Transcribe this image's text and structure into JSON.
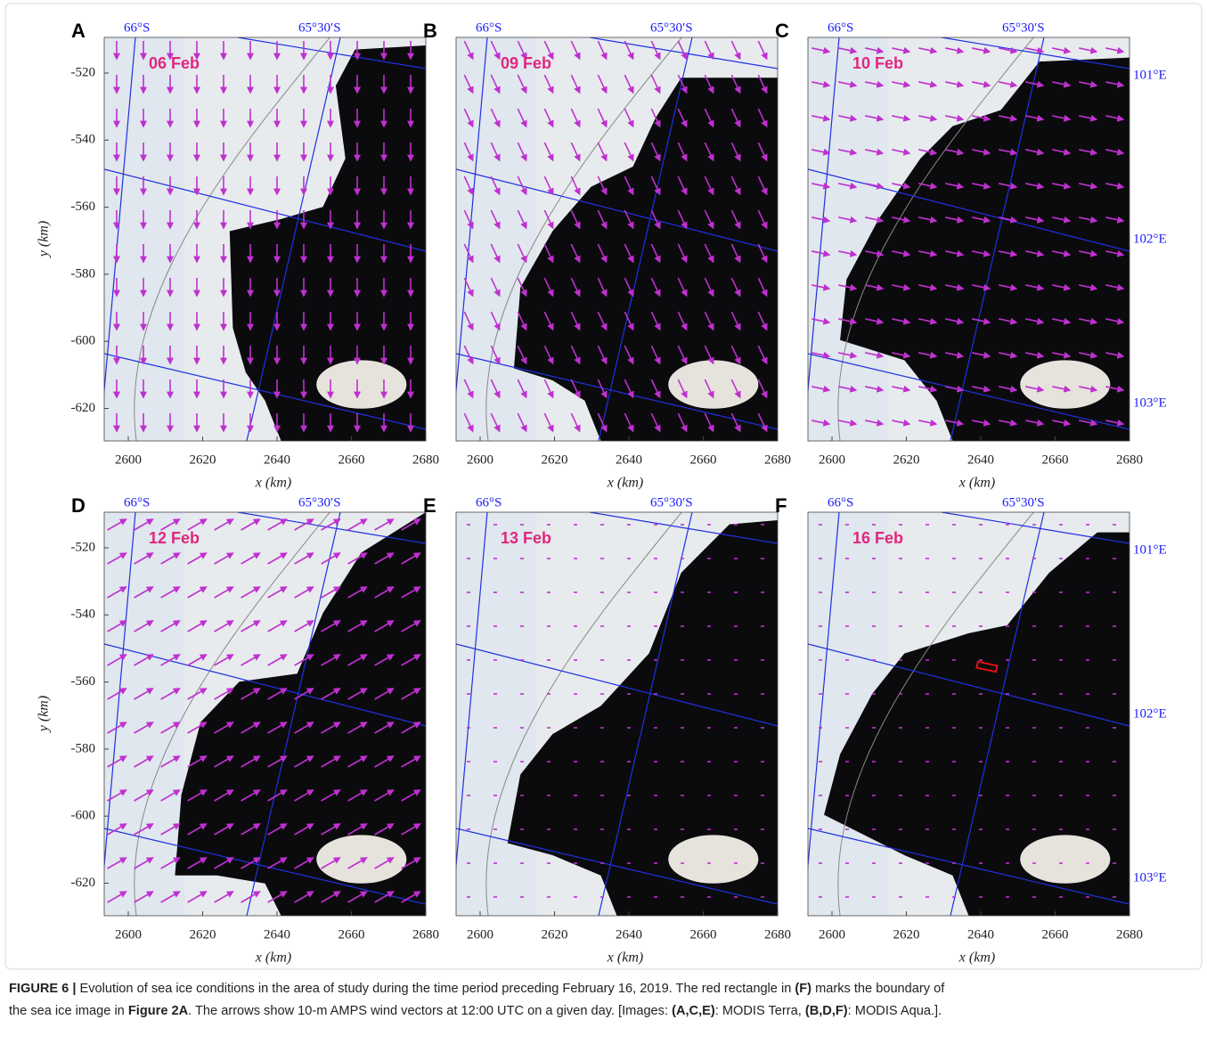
{
  "figure": {
    "panels": [
      {
        "letter": "A",
        "date": "06 Feb",
        "lat_labels": [
          "66°S",
          "65°30′S"
        ],
        "y_label": "y (km)",
        "y_ticks": [
          -520,
          -540,
          -560,
          -580,
          -600,
          -620
        ],
        "x_ticks": [
          2600,
          2620,
          2640,
          2660,
          2680
        ],
        "x_label": "x (km)"
      },
      {
        "letter": "B",
        "date": "09 Feb",
        "lat_labels": [
          "66°S",
          "65°30′S"
        ],
        "x_ticks": [
          2600,
          2620,
          2640,
          2660,
          2680
        ],
        "x_label": "x (km)"
      },
      {
        "letter": "C",
        "date": "10 Feb",
        "lat_labels": [
          "66°S",
          "65°30′S"
        ],
        "lon_labels": [
          "101°E",
          "102°E",
          "103°E"
        ],
        "x_ticks": [
          2600,
          2620,
          2640,
          2660,
          2680
        ],
        "x_label": "x (km)"
      },
      {
        "letter": "D",
        "date": "12 Feb",
        "lat_labels": [
          "66°S",
          "65°30′S"
        ],
        "y_label": "y (km)",
        "y_ticks": [
          -520,
          -540,
          -560,
          -580,
          -600,
          -620
        ],
        "x_ticks": [
          2600,
          2620,
          2640,
          2660,
          2680
        ],
        "x_label": "x (km)"
      },
      {
        "letter": "E",
        "date": "13 Feb",
        "lat_labels": [
          "66°S",
          "65°30′S"
        ],
        "x_ticks": [
          2600,
          2620,
          2640,
          2660,
          2680
        ],
        "x_label": "x (km)"
      },
      {
        "letter": "F",
        "date": "16 Feb",
        "lat_labels": [
          "66°S",
          "65°30′S"
        ],
        "lon_labels": [
          "101°E",
          "102°E",
          "103°E"
        ],
        "x_ticks": [
          2600,
          2620,
          2640,
          2660,
          2680
        ],
        "x_label": "x (km)"
      }
    ],
    "caption": [
      [
        {
          "text": "FIGURE 6 |",
          "bold": true
        },
        {
          "text": " Evolution of sea ice conditions in the area of study during the time period preceding February 16, 2019. The red rectangle in "
        },
        {
          "text": "(F)",
          "bold": true
        },
        {
          "text": " marks the boundary of"
        }
      ],
      [
        {
          "text": "the sea ice image in "
        },
        {
          "text": "Figure 2A",
          "bold": true
        },
        {
          "text": ". The arrows show 10-m AMPS wind vectors at 12:00 UTC on a given day. [Images: "
        },
        {
          "text": "(A,C,E)",
          "bold": true
        },
        {
          "text": ": MODIS Terra, "
        },
        {
          "text": "(B,D,F)",
          "bold": true
        },
        {
          "text": ": MODIS Aqua.]."
        }
      ]
    ]
  }
}
